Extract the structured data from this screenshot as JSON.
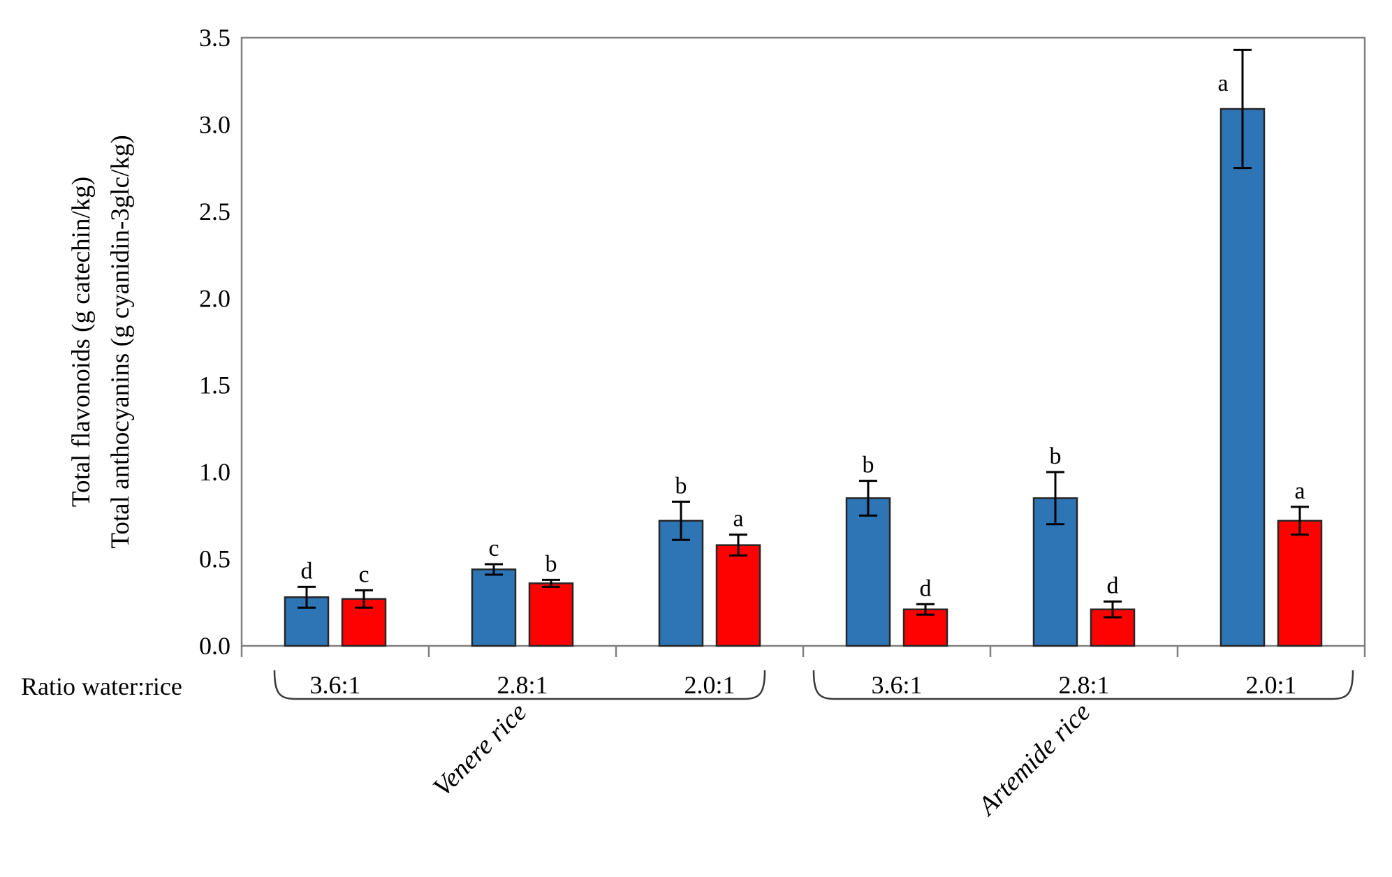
{
  "figure": {
    "colors": {
      "flavonoids_bar": "#2E75B6",
      "anthocyanins_bar": "#FE0202",
      "bar_outline": "#262626",
      "axis": "#808080",
      "bracket": "#3A3A3A",
      "error_bar": "#000000",
      "text": "#000000"
    }
  },
  "chart_data": {
    "type": "bar",
    "title": "",
    "ylabel_lines": [
      "Total flavonoids (g catechin/kg)",
      "Total anthocyanins (g cyanidin-3glc/kg)"
    ],
    "x_axis_label": "Ratio water:rice",
    "ylim": [
      0,
      3.5
    ],
    "ytick_labels": [
      "0.0",
      "0.5",
      "1.0",
      "1.5",
      "2.0",
      "2.5",
      "3.0",
      "3.5"
    ],
    "grid": false,
    "legend": "none",
    "series": [
      {
        "name": "Total flavonoids",
        "key": "flavonoids",
        "color_ref": "flavonoids_bar"
      },
      {
        "name": "Total anthocyanins",
        "key": "anthocyanins",
        "color_ref": "anthocyanins_bar"
      }
    ],
    "varieties": [
      {
        "label": "Venere rice",
        "group_indices": [
          0,
          1,
          2
        ]
      },
      {
        "label": "Artemide rice",
        "group_indices": [
          3,
          4,
          5
        ]
      }
    ],
    "groups": [
      {
        "variety": "Venere rice",
        "ratio": "3.6:1",
        "flavonoids": {
          "value": 0.28,
          "error": 0.06,
          "letter": "d"
        },
        "anthocyanins": {
          "value": 0.27,
          "error": 0.05,
          "letter": "c"
        }
      },
      {
        "variety": "Venere rice",
        "ratio": "2.8:1",
        "flavonoids": {
          "value": 0.44,
          "error": 0.03,
          "letter": "c"
        },
        "anthocyanins": {
          "value": 0.36,
          "error": 0.02,
          "letter": "b"
        }
      },
      {
        "variety": "Venere rice",
        "ratio": "2.0:1",
        "flavonoids": {
          "value": 0.72,
          "error": 0.11,
          "letter": "b"
        },
        "anthocyanins": {
          "value": 0.58,
          "error": 0.06,
          "letter": "a"
        }
      },
      {
        "variety": "Artemide rice",
        "ratio": "3.6:1",
        "flavonoids": {
          "value": 0.85,
          "error": 0.1,
          "letter": "b"
        },
        "anthocyanins": {
          "value": 0.21,
          "error": 0.03,
          "letter": "d"
        }
      },
      {
        "variety": "Artemide rice",
        "ratio": "2.8:1",
        "flavonoids": {
          "value": 0.85,
          "error": 0.15,
          "letter": "b"
        },
        "anthocyanins": {
          "value": 0.21,
          "error": 0.045,
          "letter": "d"
        }
      },
      {
        "variety": "Artemide rice",
        "ratio": "2.0:1",
        "flavonoids": {
          "value": 3.09,
          "error": 0.34,
          "letter": "a"
        },
        "anthocyanins": {
          "value": 0.72,
          "error": 0.08,
          "letter": "a"
        }
      }
    ]
  }
}
